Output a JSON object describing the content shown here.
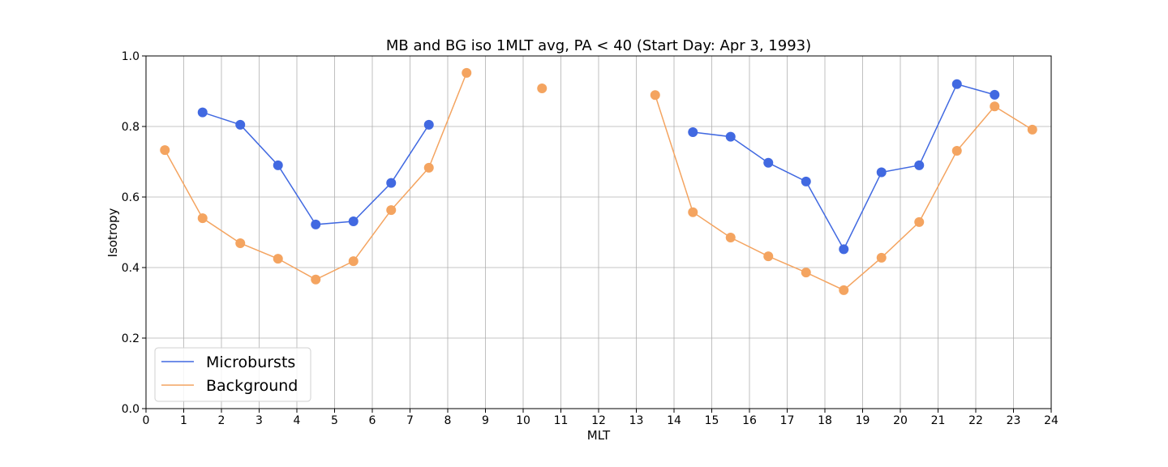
{
  "chart_data": {
    "type": "line",
    "title": "MB and BG iso 1MLT avg, PA < 40 (Start Day: Apr 3, 1993)",
    "xlabel": "MLT",
    "ylabel": "Isotropy",
    "xlim": [
      0,
      24
    ],
    "ylim": [
      0,
      1
    ],
    "xticks": [
      "0",
      "1",
      "2",
      "3",
      "4",
      "5",
      "6",
      "7",
      "8",
      "9",
      "10",
      "11",
      "12",
      "13",
      "14",
      "15",
      "16",
      "17",
      "18",
      "19",
      "20",
      "21",
      "22",
      "23",
      "24"
    ],
    "yticks": [
      "0.0",
      "0.2",
      "0.4",
      "0.6",
      "0.8",
      "1.0"
    ],
    "grid": true,
    "legend_position": "lower-left",
    "x": [
      0.5,
      1.5,
      2.5,
      3.5,
      4.5,
      5.5,
      6.5,
      7.5,
      8.5,
      9.5,
      10.5,
      11.5,
      12.5,
      13.5,
      14.5,
      15.5,
      16.5,
      17.5,
      18.5,
      19.5,
      20.5,
      21.5,
      22.5,
      23.5
    ],
    "series": [
      {
        "name": "Microbursts",
        "color": "#4169e1",
        "values": [
          null,
          0.84,
          0.805,
          0.69,
          0.522,
          0.531,
          0.64,
          0.805,
          null,
          null,
          null,
          null,
          null,
          null,
          0.784,
          0.771,
          0.697,
          0.644,
          0.452,
          0.67,
          0.69,
          0.92,
          0.89,
          null
        ]
      },
      {
        "name": "Background",
        "color": "#f4a460",
        "values": [
          0.733,
          0.54,
          0.469,
          0.425,
          0.366,
          0.418,
          0.563,
          0.683,
          0.952,
          null,
          0.908,
          null,
          null,
          0.889,
          0.557,
          0.485,
          0.432,
          0.386,
          0.336,
          0.428,
          0.529,
          0.731,
          0.857,
          0.791
        ]
      }
    ]
  }
}
